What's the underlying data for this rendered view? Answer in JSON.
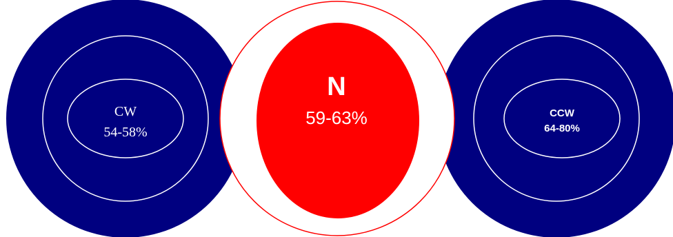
{
  "colors": {
    "background": "#ffffff",
    "navy": "#000080",
    "red": "#ff0000",
    "white": "#ffffff"
  },
  "left": {
    "title": "CW",
    "value": "54-58%"
  },
  "center": {
    "title": "N",
    "value": "59-63%"
  },
  "right": {
    "title": "CCW",
    "value": "64-80%"
  }
}
